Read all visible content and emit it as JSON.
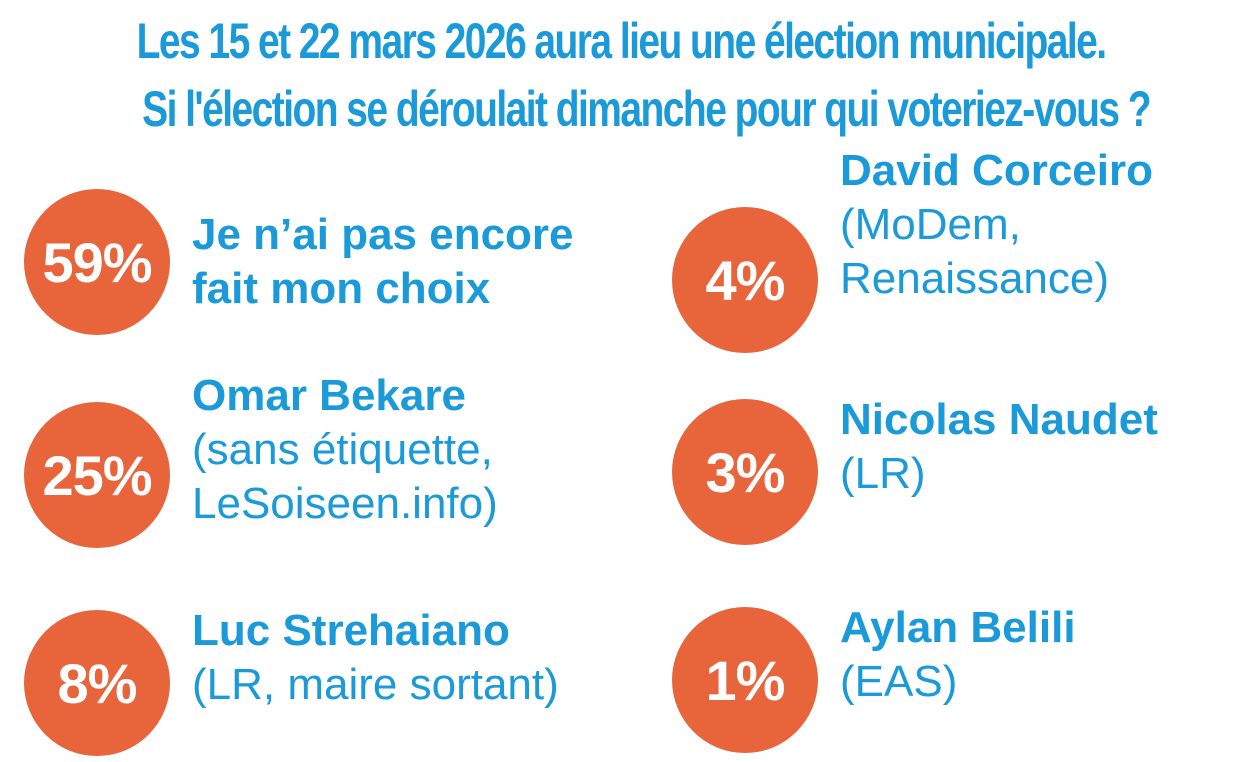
{
  "title": {
    "line1": "Les 15 et 22 mars 2026 aura lieu une élection municipale.",
    "line2": "Si l'élection se déroulait dimanche pour qui voteriez-vous ?"
  },
  "colors": {
    "accent": "#e8643a",
    "text": "#1a9ad9"
  },
  "chart_data": {
    "type": "table",
    "title": "Les 15 et 22 mars 2026 aura lieu une élection municipale. Si l'élection se déroulait dimanche pour qui voteriez-vous ?",
    "unit": "%",
    "items": [
      {
        "pct": "59%",
        "value": 59,
        "name_lines": [
          "Je n’ai pas encore",
          "fait mon choix"
        ],
        "sub_lines": []
      },
      {
        "pct": "25%",
        "value": 25,
        "name_lines": [
          "Omar Bekare"
        ],
        "sub_lines": [
          "(sans étiquette,",
          "LeSoiseen.info)"
        ]
      },
      {
        "pct": "8%",
        "value": 8,
        "name_lines": [
          "Luc Strehaiano"
        ],
        "sub_lines": [
          "(LR, maire sortant)"
        ]
      },
      {
        "pct": "4%",
        "value": 4,
        "name_lines": [
          "David Corceiro"
        ],
        "sub_lines": [
          "(MoDem,",
          "Renaissance)"
        ]
      },
      {
        "pct": "3%",
        "value": 3,
        "name_lines": [
          "Nicolas Naudet"
        ],
        "sub_lines": [
          "(LR)"
        ]
      },
      {
        "pct": "1%",
        "value": 1,
        "name_lines": [
          "Aylan Belili"
        ],
        "sub_lines": [
          "(EAS)"
        ]
      }
    ]
  }
}
